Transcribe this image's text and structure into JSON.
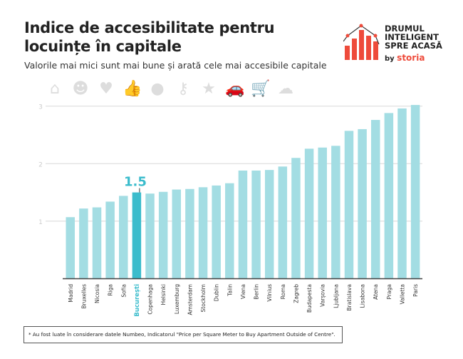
{
  "header": {
    "title": "Indice de accesibilitate pentru locuințe în capitale",
    "subtitle": "Valorile mai mici sunt mai bune și arată cele mai accesibile capitale"
  },
  "logo": {
    "line1": "DRUMUL",
    "line2": "INTELIGENT",
    "line3": "SPRE ACASĂ",
    "by": "by",
    "brand": "storia",
    "brand_color": "#ee4b3b"
  },
  "decorative_icons": [
    "house-icon",
    "smiley-icon",
    "heart-icon",
    "thumbs-up-icon",
    "map-pin-icon",
    "key-icon",
    "star-icon",
    "car-icon",
    "cart-icon",
    "chef-hat-icon"
  ],
  "chart_data": {
    "type": "bar",
    "categories": [
      "Madrid",
      "Bruxelles",
      "Nicosia",
      "Riga",
      "Sofia",
      "București",
      "Copenhaga",
      "Helsinki",
      "Luxemburg",
      "Amsterdam",
      "Stockholm",
      "Dublin",
      "Talin",
      "Viena",
      "Berlin",
      "Vilnius",
      "Roma",
      "Zagreb",
      "Budapesta",
      "Varșovia",
      "Ljubljana",
      "Bratislava",
      "Lisabona",
      "Atena",
      "Praga",
      "Valletta",
      "Paris"
    ],
    "values": [
      1.07,
      1.22,
      1.24,
      1.34,
      1.44,
      1.5,
      1.48,
      1.51,
      1.55,
      1.56,
      1.59,
      1.62,
      1.66,
      1.88,
      1.88,
      1.89,
      1.95,
      2.1,
      2.26,
      2.28,
      2.31,
      2.57,
      2.6,
      2.76,
      2.88,
      2.96,
      3.02
    ],
    "highlight": {
      "category": "București",
      "label": "1.5",
      "color": "#3bbccc"
    },
    "bar_color": "#a3dde3",
    "yticks": [
      "1",
      "2",
      "3"
    ],
    "ylim": [
      0,
      3.05
    ],
    "grid": true
  },
  "footnote": "* Au fost luate în considerare datele Numbeo, Indicatorul \"Price per Square Meter to Buy Apartment Outside of Centre\"."
}
